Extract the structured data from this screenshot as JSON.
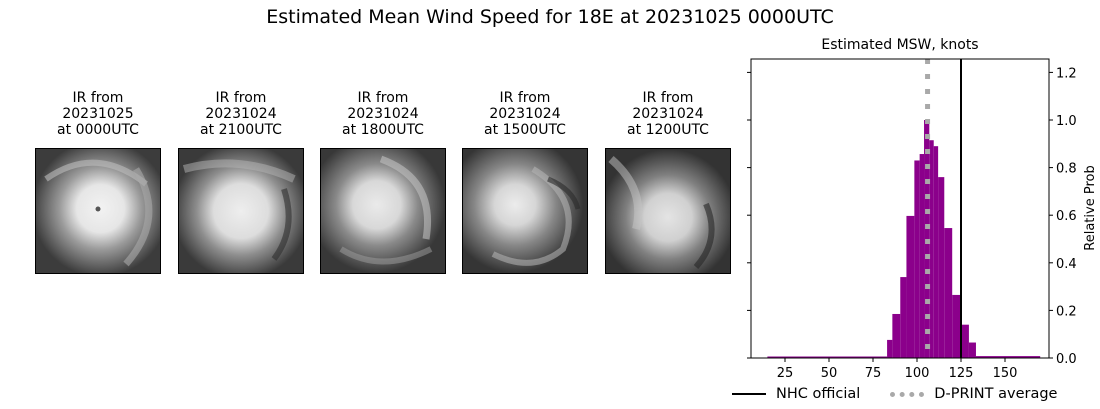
{
  "figure": {
    "title": "Estimated Mean Wind Speed for 18E at 20231025 0000UTC"
  },
  "ir_images": [
    {
      "line1": "IR from",
      "line2": "20231025",
      "line3": "at 0000UTC"
    },
    {
      "line1": "IR from",
      "line2": "20231024",
      "line3": "at 2100UTC"
    },
    {
      "line1": "IR from",
      "line2": "20231024",
      "line3": "at 1800UTC"
    },
    {
      "line1": "IR from",
      "line2": "20231024",
      "line3": "at 1500UTC"
    },
    {
      "line1": "IR from",
      "line2": "20231024",
      "line3": "at 1200UTC"
    }
  ],
  "legend": {
    "nhc_label": "NHC official",
    "dprint_label": "D-PRINT average"
  },
  "colors": {
    "bar": "#8b008b",
    "nhc_line": "#000000",
    "dprint_line": "#a9a9a9"
  },
  "chart_data": {
    "type": "bar",
    "title": "Estimated MSW, knots",
    "xlabel": "",
    "ylabel": "Relative Prob",
    "xlim": [
      5,
      175
    ],
    "ylim": [
      0,
      1.25
    ],
    "xticks": [
      25,
      50,
      75,
      100,
      125,
      150
    ],
    "yticks": [
      0.0,
      0.2,
      0.4,
      0.6,
      0.8,
      1.0,
      1.2
    ],
    "ytick_labels": [
      "0.0",
      "0.2",
      "0.4",
      "0.6",
      "0.8",
      "1.0",
      "1.2"
    ],
    "y_axis_side": "right",
    "grid": false,
    "bins": [
      {
        "x0": 15,
        "x1": 83,
        "value": 0.005
      },
      {
        "x0": 83,
        "x1": 86,
        "value": 0.076
      },
      {
        "x0": 86,
        "x1": 90.5,
        "value": 0.185
      },
      {
        "x0": 90.5,
        "x1": 94,
        "value": 0.34
      },
      {
        "x0": 94,
        "x1": 98.5,
        "value": 0.597
      },
      {
        "x0": 98.5,
        "x1": 101.5,
        "value": 0.83
      },
      {
        "x0": 101.5,
        "x1": 104,
        "value": 0.857
      },
      {
        "x0": 104,
        "x1": 107,
        "value": 1.0
      },
      {
        "x0": 107,
        "x1": 109.5,
        "value": 0.915
      },
      {
        "x0": 109.5,
        "x1": 112,
        "value": 0.89
      },
      {
        "x0": 112,
        "x1": 115.5,
        "value": 0.76
      },
      {
        "x0": 115.5,
        "x1": 120,
        "value": 0.546
      },
      {
        "x0": 120,
        "x1": 125.5,
        "value": 0.265
      },
      {
        "x0": 125.5,
        "x1": 129.5,
        "value": 0.14
      },
      {
        "x0": 129.5,
        "x1": 133.5,
        "value": 0.065
      },
      {
        "x0": 133.5,
        "x1": 170,
        "value": 0.008
      }
    ],
    "lines": [
      {
        "name": "NHC official",
        "x": 125,
        "style": "solid",
        "color": "#000000"
      },
      {
        "name": "D-PRINT average",
        "x": 106,
        "style": "dotted",
        "color": "#a9a9a9"
      }
    ],
    "legend_position": "bottom"
  }
}
